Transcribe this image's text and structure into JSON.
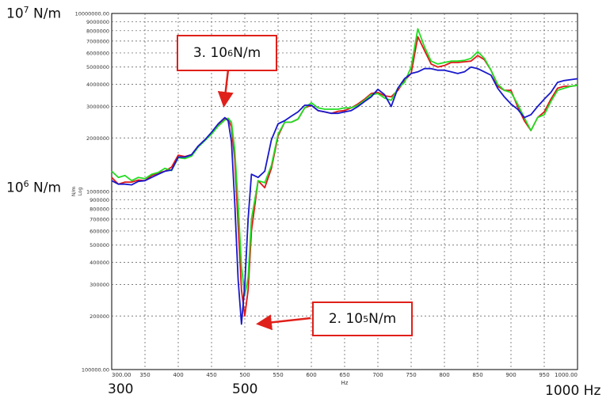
{
  "chart_data": {
    "type": "line",
    "xlabel": "Hz",
    "ylabel": "N/m",
    "ylabel_scale": "Log",
    "xlim": [
      300,
      1000
    ],
    "ylim": [
      100000,
      10000000
    ],
    "y_scale": "log",
    "grid": true,
    "x_ticks": [
      300,
      350,
      400,
      450,
      500,
      550,
      600,
      650,
      700,
      750,
      800,
      850,
      900,
      950,
      1000
    ],
    "x_tick_labels": [
      "300.00",
      "350",
      "400",
      "450",
      "500",
      "550",
      "600",
      "650",
      "700",
      "750",
      "800",
      "850",
      "900",
      "950",
      "1000.00"
    ],
    "y_ticks": [
      100000,
      200000,
      300000,
      400000,
      500000,
      600000,
      700000,
      800000,
      900000,
      1000000,
      2000000,
      3000000,
      4000000,
      5000000,
      6000000,
      7000000,
      8000000,
      9000000,
      10000000
    ],
    "y_tick_labels": [
      "100000.00",
      "200000",
      "300000",
      "400000",
      "500000",
      "600000",
      "700000",
      "800000",
      "900000",
      "1000000",
      "2000000",
      "3000000",
      "4000000",
      "5000000",
      "6000000",
      "7000000",
      "8000000",
      "9000000",
      "10000000.00"
    ],
    "series": [
      {
        "color": "#e01818",
        "x": [
          300,
          310,
          320,
          330,
          340,
          350,
          360,
          370,
          380,
          390,
          400,
          410,
          420,
          430,
          440,
          450,
          460,
          470,
          475,
          480,
          485,
          490,
          495,
          500,
          505,
          510,
          520,
          530,
          540,
          550,
          560,
          570,
          580,
          590,
          600,
          610,
          620,
          630,
          640,
          650,
          660,
          670,
          680,
          690,
          700,
          710,
          720,
          730,
          740,
          750,
          760,
          770,
          780,
          790,
          800,
          810,
          820,
          830,
          840,
          850,
          860,
          870,
          880,
          890,
          900,
          910,
          920,
          930,
          940,
          950,
          960,
          970,
          980,
          990,
          1000
        ],
        "y": [
          1200000,
          1100000,
          1130000,
          1130000,
          1160000,
          1150000,
          1230000,
          1270000,
          1300000,
          1370000,
          1600000,
          1570000,
          1610000,
          1800000,
          1950000,
          2100000,
          2350000,
          2580000,
          2560000,
          2300000,
          1500000,
          650000,
          280000,
          200000,
          280000,
          600000,
          1150000,
          1050000,
          1350000,
          2050000,
          2450000,
          2450000,
          2550000,
          2950000,
          3050000,
          2850000,
          2800000,
          2750000,
          2820000,
          2850000,
          2950000,
          3100000,
          3300000,
          3550000,
          3600000,
          3450000,
          3400000,
          3700000,
          4200000,
          4600000,
          7400000,
          6200000,
          5200000,
          5000000,
          5100000,
          5300000,
          5300000,
          5350000,
          5400000,
          5800000,
          5500000,
          4800000,
          3900000,
          3700000,
          3700000,
          3000000,
          2500000,
          2200000,
          2600000,
          2800000,
          3300000,
          3800000,
          3900000,
          3900000,
          3950000
        ]
      },
      {
        "color": "#22dd22",
        "x": [
          300,
          310,
          320,
          330,
          340,
          350,
          360,
          370,
          380,
          390,
          400,
          410,
          420,
          430,
          440,
          450,
          460,
          470,
          475,
          480,
          485,
          490,
          495,
          500,
          505,
          510,
          520,
          530,
          540,
          550,
          560,
          570,
          580,
          590,
          600,
          610,
          620,
          630,
          640,
          650,
          660,
          670,
          680,
          690,
          700,
          710,
          720,
          730,
          740,
          750,
          760,
          770,
          780,
          790,
          800,
          810,
          820,
          830,
          840,
          850,
          860,
          870,
          880,
          890,
          900,
          910,
          920,
          930,
          940,
          950,
          960,
          970,
          980,
          990,
          1000
        ],
        "y": [
          1300000,
          1200000,
          1230000,
          1150000,
          1200000,
          1180000,
          1250000,
          1280000,
          1350000,
          1310000,
          1550000,
          1530000,
          1580000,
          1780000,
          1930000,
          2100000,
          2330000,
          2520000,
          2580000,
          2450000,
          1700000,
          850000,
          380000,
          260000,
          330000,
          700000,
          1150000,
          1120000,
          1400000,
          2100000,
          2450000,
          2450000,
          2550000,
          2950000,
          3150000,
          2950000,
          2900000,
          2900000,
          2900000,
          2950000,
          2950000,
          3050000,
          3250000,
          3500000,
          3550000,
          3350000,
          3250000,
          3800000,
          4100000,
          5000000,
          8200000,
          6500000,
          5400000,
          5200000,
          5300000,
          5400000,
          5400000,
          5450000,
          5600000,
          6100000,
          5600000,
          4800000,
          4000000,
          3700000,
          3600000,
          3100000,
          2600000,
          2200000,
          2600000,
          2700000,
          3200000,
          3700000,
          3800000,
          3900000,
          3950000
        ]
      },
      {
        "color": "#1818cc",
        "x": [
          300,
          310,
          320,
          330,
          340,
          350,
          360,
          370,
          380,
          390,
          400,
          410,
          420,
          430,
          440,
          450,
          460,
          470,
          475,
          480,
          485,
          490,
          495,
          500,
          505,
          510,
          520,
          530,
          540,
          550,
          560,
          570,
          580,
          590,
          600,
          610,
          620,
          630,
          640,
          650,
          660,
          670,
          680,
          690,
          700,
          710,
          720,
          730,
          740,
          750,
          760,
          770,
          780,
          790,
          800,
          810,
          820,
          830,
          840,
          850,
          860,
          870,
          880,
          890,
          900,
          910,
          920,
          930,
          940,
          950,
          960,
          970,
          980,
          990,
          1000
        ],
        "y": [
          1150000,
          1100000,
          1100000,
          1090000,
          1140000,
          1150000,
          1200000,
          1250000,
          1300000,
          1320000,
          1560000,
          1560000,
          1610000,
          1800000,
          1950000,
          2150000,
          2400000,
          2600000,
          2500000,
          1900000,
          850000,
          320000,
          180000,
          300000,
          700000,
          1250000,
          1200000,
          1300000,
          1950000,
          2400000,
          2500000,
          2650000,
          2800000,
          3050000,
          3050000,
          2850000,
          2800000,
          2750000,
          2750000,
          2800000,
          2850000,
          3000000,
          3200000,
          3400000,
          3750000,
          3500000,
          3000000,
          3800000,
          4300000,
          4600000,
          4700000,
          4900000,
          4900000,
          4800000,
          4800000,
          4700000,
          4600000,
          4700000,
          5000000,
          4900000,
          4700000,
          4500000,
          3800000,
          3400000,
          3100000,
          2900000,
          2600000,
          2700000,
          3000000,
          3300000,
          3600000,
          4100000,
          4200000,
          4250000,
          4300000
        ]
      }
    ]
  },
  "annotations": {
    "y_top_label_base": "10",
    "y_top_label_exp": "7",
    "y_top_label_unit": " N/m",
    "y_mid_label_base": "10",
    "y_mid_label_exp": "6",
    "y_mid_label_unit": " N/m",
    "x_start_label": "300",
    "x_mid_label": "500",
    "x_end_label": "1000 Hz",
    "callout_peak_prefix": "3. 10",
    "callout_peak_exp": "6",
    "callout_peak_unit": " N/m",
    "callout_dip_prefix": "2. 10",
    "callout_dip_exp": "5",
    "callout_dip_unit": " N/m",
    "callout_color": "#e0201a"
  }
}
